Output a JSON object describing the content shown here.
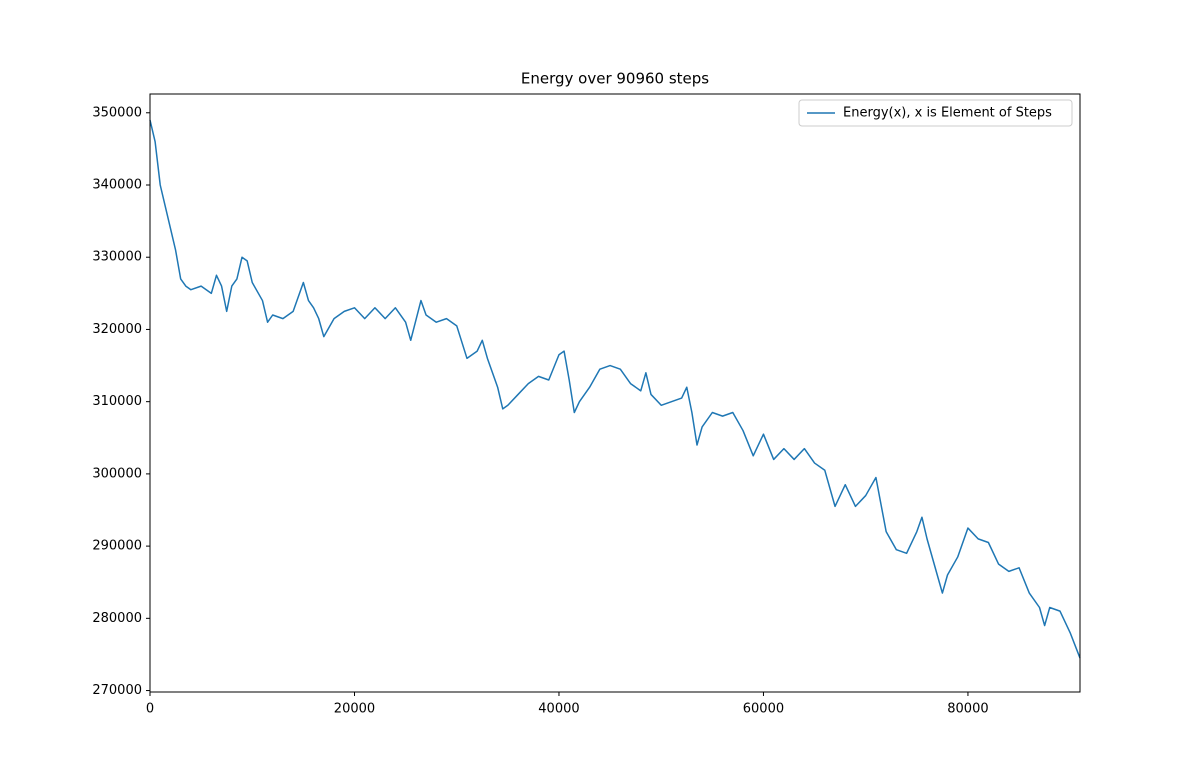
{
  "chart_data": {
    "type": "line",
    "title": "Energy over  90960 steps",
    "x": [
      0,
      500,
      1000,
      1500,
      2000,
      2500,
      3000,
      3500,
      4000,
      5000,
      6000,
      6500,
      7000,
      7500,
      8000,
      8500,
      9000,
      9500,
      10000,
      11000,
      11500,
      12000,
      13000,
      14000,
      15000,
      15500,
      16000,
      16500,
      17000,
      18000,
      19000,
      20000,
      21000,
      22000,
      23000,
      24000,
      25000,
      25500,
      26500,
      27000,
      28000,
      29000,
      30000,
      31000,
      32000,
      32500,
      33000,
      34000,
      34500,
      35000,
      36000,
      37000,
      38000,
      39000,
      40000,
      40500,
      41000,
      41500,
      42000,
      43000,
      44000,
      45000,
      46000,
      47000,
      48000,
      48500,
      49000,
      50000,
      51000,
      52000,
      52500,
      53000,
      53500,
      54000,
      55000,
      56000,
      57000,
      58000,
      59000,
      60000,
      61000,
      62000,
      63000,
      64000,
      65000,
      66000,
      67000,
      68000,
      69000,
      70000,
      71000,
      72000,
      73000,
      74000,
      75000,
      75500,
      76000,
      77000,
      77500,
      78000,
      79000,
      80000,
      81000,
      82000,
      83000,
      84000,
      85000,
      86000,
      87000,
      87500,
      88000,
      89000,
      90000,
      90960
    ],
    "series": [
      {
        "name": "Energy(x), x is Element of Steps",
        "color": "#1f77b4",
        "values": [
          349000,
          346000,
          340000,
          337000,
          334000,
          331000,
          327000,
          326000,
          325500,
          326000,
          325000,
          327500,
          326000,
          322500,
          326000,
          327000,
          330000,
          329500,
          326500,
          324000,
          321000,
          322000,
          321500,
          322500,
          326500,
          324000,
          323000,
          321500,
          319000,
          321500,
          322500,
          323000,
          321500,
          323000,
          321500,
          323000,
          321000,
          318500,
          324000,
          322000,
          321000,
          321500,
          320500,
          316000,
          317000,
          318500,
          316000,
          312000,
          309000,
          309500,
          311000,
          312500,
          313500,
          313000,
          316500,
          317000,
          313000,
          308500,
          310000,
          312000,
          314500,
          315000,
          314500,
          312500,
          311500,
          314000,
          311000,
          309500,
          310000,
          310500,
          312000,
          308500,
          304000,
          306500,
          308500,
          308000,
          308500,
          306000,
          302500,
          305500,
          302000,
          303500,
          302000,
          303500,
          301500,
          300500,
          295500,
          298500,
          295500,
          297000,
          299500,
          292000,
          289500,
          289000,
          292000,
          294000,
          291000,
          286000,
          283500,
          286000,
          288500,
          292500,
          291000,
          290500,
          287500,
          286500,
          287000,
          283500,
          281500,
          279000,
          281500,
          281000,
          278000,
          274500
        ]
      }
    ],
    "xlim": [
      0,
      90960
    ],
    "ylim": [
      269800,
      352600
    ],
    "xticks": [
      0,
      20000,
      40000,
      60000,
      80000
    ],
    "yticks": [
      270000,
      280000,
      290000,
      300000,
      310000,
      320000,
      330000,
      340000,
      350000
    ],
    "grid": false,
    "legend": "upper right"
  }
}
